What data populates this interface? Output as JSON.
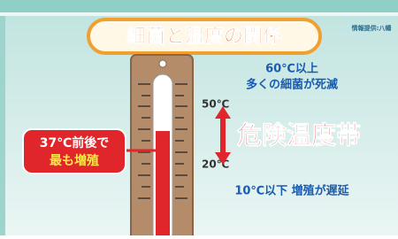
{
  "header": {
    "title": "細菌と温度の関係",
    "credit": "情報提供:八幡"
  },
  "thermometer": {
    "upper_label": "50℃",
    "lower_label": "20℃"
  },
  "zones": {
    "high": {
      "line1": "60℃以上",
      "line2": "多くの細菌が死滅"
    },
    "danger": "危険温度帯",
    "low": "10℃以下 増殖が遅延"
  },
  "callout": {
    "line1": "37℃前後で",
    "line2": "最も増殖"
  }
}
